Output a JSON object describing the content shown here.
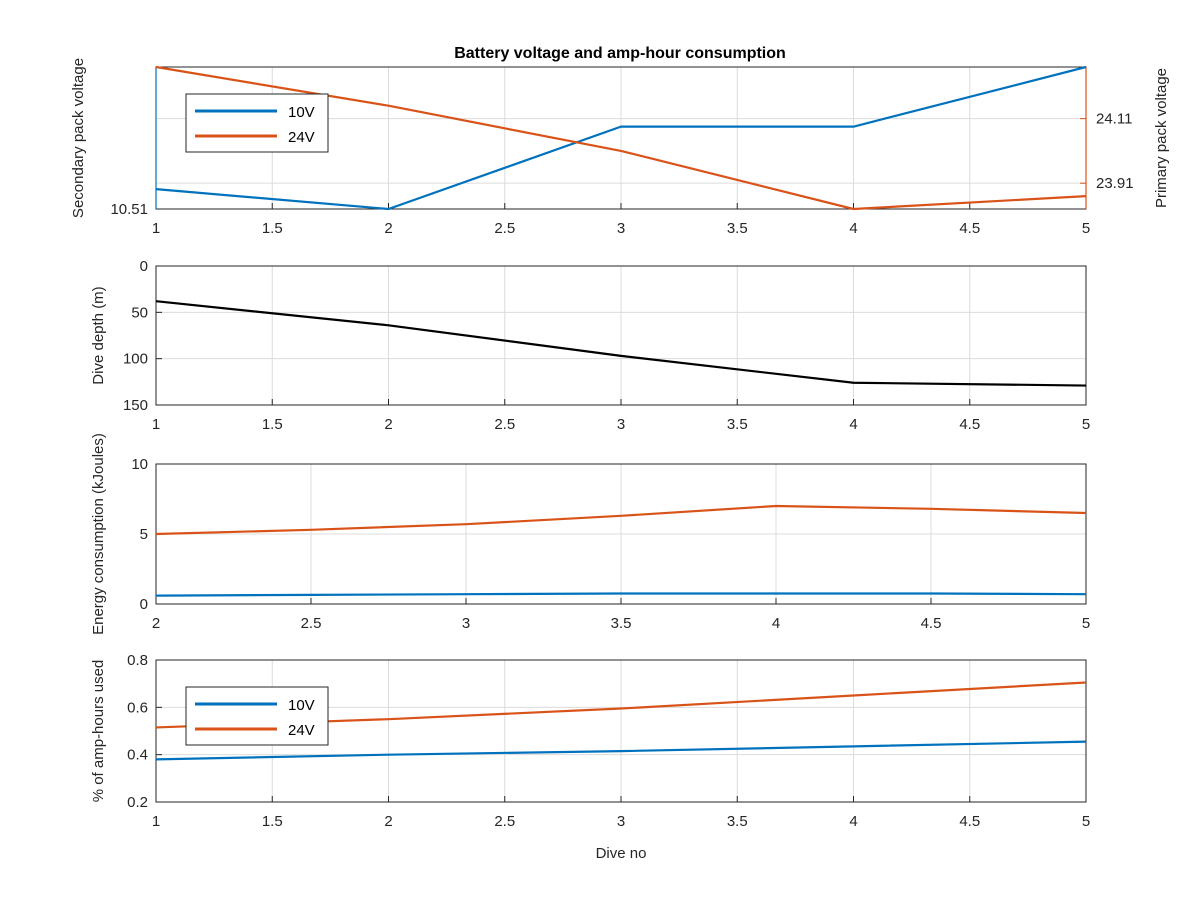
{
  "chart_data": [
    {
      "type": "line",
      "title": "Battery voltage and amp-hour consumption",
      "ylabel": "Secondary pack voltage",
      "ylabel_right": "Primary pack voltage",
      "x": [
        1,
        2,
        3,
        4,
        5
      ],
      "xlim": [
        1,
        5
      ],
      "xticks": [
        "1",
        "1.5",
        "2",
        "2.5",
        "3",
        "3.5",
        "4",
        "4.5",
        "5"
      ],
      "ylim": [
        10.51,
        10.56
      ],
      "yticks": [
        "10.51"
      ],
      "ylim_right": [
        23.83,
        24.27
      ],
      "yticks_right": [
        "23.91",
        "24.11"
      ],
      "grid": true,
      "legend_position": "top-left",
      "series": [
        {
          "name": "10V",
          "axis": "left",
          "color": "#0072BD",
          "values": [
            10.517,
            10.51,
            10.539,
            10.539,
            10.56
          ]
        },
        {
          "name": "24V",
          "axis": "right",
          "color": "#D95319",
          "values": [
            24.27,
            24.15,
            24.01,
            23.83,
            23.87
          ]
        }
      ]
    },
    {
      "type": "line",
      "ylabel": "Dive depth (m)",
      "x": [
        1,
        2,
        3,
        4,
        5
      ],
      "xlim": [
        1,
        5
      ],
      "xticks": [
        "1",
        "1.5",
        "2",
        "2.5",
        "3",
        "3.5",
        "4",
        "4.5",
        "5"
      ],
      "ylim": [
        0,
        150
      ],
      "y_reversed": true,
      "yticks": [
        "0",
        "50",
        "100",
        "150"
      ],
      "grid": true,
      "series": [
        {
          "color": "#000000",
          "values": [
            38,
            64,
            97,
            126,
            129
          ]
        }
      ]
    },
    {
      "type": "line",
      "ylabel": "Energy consumption (kJoules)",
      "x": [
        2,
        2.5,
        3,
        3.5,
        4,
        4.5,
        5
      ],
      "xlim": [
        2,
        5
      ],
      "xticks": [
        "2",
        "2.5",
        "3",
        "3.5",
        "4",
        "4.5",
        "5"
      ],
      "ylim": [
        0,
        10
      ],
      "yticks": [
        "0",
        "5",
        "10"
      ],
      "grid": true,
      "series": [
        {
          "color": "#D95319",
          "values": [
            5.0,
            5.3,
            5.7,
            6.3,
            7.0,
            6.8,
            6.5
          ]
        },
        {
          "color": "#0072BD",
          "values": [
            0.6,
            0.65,
            0.7,
            0.75,
            0.75,
            0.75,
            0.7
          ]
        }
      ]
    },
    {
      "type": "line",
      "ylabel": "% of amp-hours used",
      "xlabel": "Dive no",
      "x": [
        1,
        2,
        3,
        4,
        5
      ],
      "xlim": [
        1,
        5
      ],
      "xticks": [
        "1",
        "1.5",
        "2",
        "2.5",
        "3",
        "3.5",
        "4",
        "4.5",
        "5"
      ],
      "ylim": [
        0.2,
        0.8
      ],
      "yticks": [
        "0.2",
        "0.4",
        "0.6",
        "0.8"
      ],
      "grid": true,
      "legend_position": "top-left",
      "series": [
        {
          "name": "10V",
          "color": "#0072BD",
          "values": [
            0.38,
            0.4,
            0.415,
            0.435,
            0.455
          ]
        },
        {
          "name": "24V",
          "color": "#D95319",
          "values": [
            0.515,
            0.55,
            0.595,
            0.65,
            0.705
          ]
        }
      ]
    }
  ]
}
